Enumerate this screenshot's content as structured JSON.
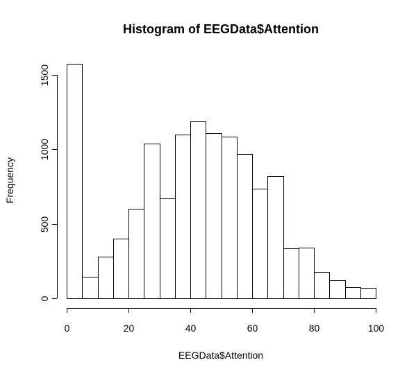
{
  "chart_data": {
    "type": "bar",
    "title": "Histogram of EEGData$Attention",
    "xlabel": "EEGData$Attention",
    "ylabel": "Frequency",
    "bin_edges": [
      0,
      5,
      10,
      15,
      20,
      25,
      30,
      35,
      40,
      45,
      50,
      55,
      60,
      65,
      70,
      75,
      80,
      85,
      90,
      95,
      100
    ],
    "values": [
      1575,
      145,
      280,
      400,
      600,
      1040,
      670,
      1100,
      1190,
      1110,
      1085,
      970,
      735,
      820,
      335,
      340,
      178,
      122,
      75,
      68
    ],
    "xlim": [
      0,
      100
    ],
    "ylim": [
      0,
      1575
    ],
    "x_ticks": [
      0,
      20,
      40,
      60,
      80,
      100
    ],
    "x_tick_labels": [
      "0",
      "20",
      "40",
      "60",
      "80",
      "100"
    ],
    "y_ticks": [
      0,
      500,
      1000,
      1500
    ],
    "y_tick_labels": [
      "0",
      "500",
      "1000",
      "1500"
    ],
    "grid": false,
    "bar_fill": "#ffffff",
    "bar_stroke": "#000000"
  }
}
